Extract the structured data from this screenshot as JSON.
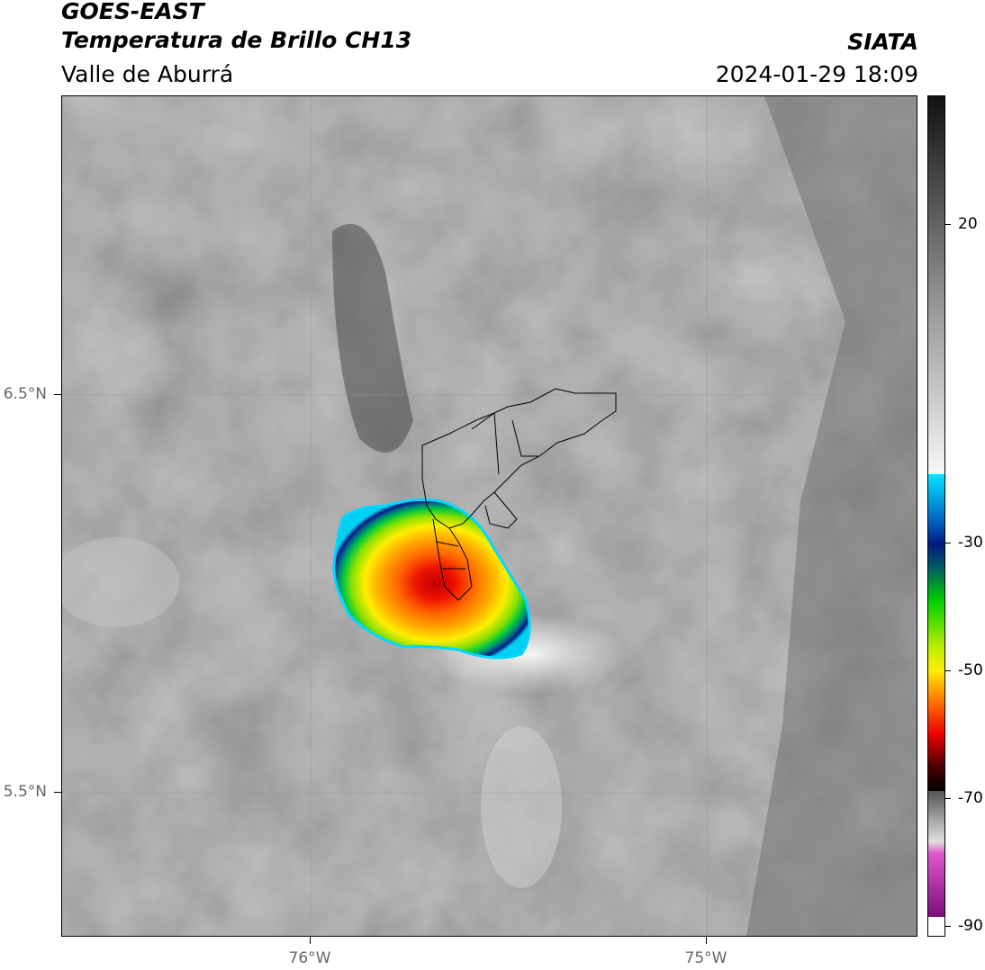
{
  "header": {
    "line1": "GOES-EAST",
    "line2": "Temperatura de Brillo CH13",
    "region": "Valle de Aburrá",
    "org": "SIATA",
    "datetime": "2024-01-29 18:09"
  },
  "map": {
    "lat_labels": [
      "6.5°N",
      "5.5°N"
    ],
    "lon_labels": [
      "76°W",
      "75°W"
    ],
    "storm_color_min": "#8b0000",
    "background_color": "#8a8a8a"
  },
  "colorbar": {
    "ticks": [
      "20",
      "-30",
      "-50",
      "-70",
      "-90"
    ],
    "colors": {
      "gray_dark": "#111111",
      "gray_light": "#f5f5f5",
      "cyan": "#00e5ff",
      "navy": "#001a80",
      "green": "#00d000",
      "yellow": "#ffee00",
      "orange": "#ff8800",
      "red": "#ee0000",
      "black": "#000000",
      "magenta": "#dd55cc",
      "purple": "#8a1a8a"
    }
  }
}
